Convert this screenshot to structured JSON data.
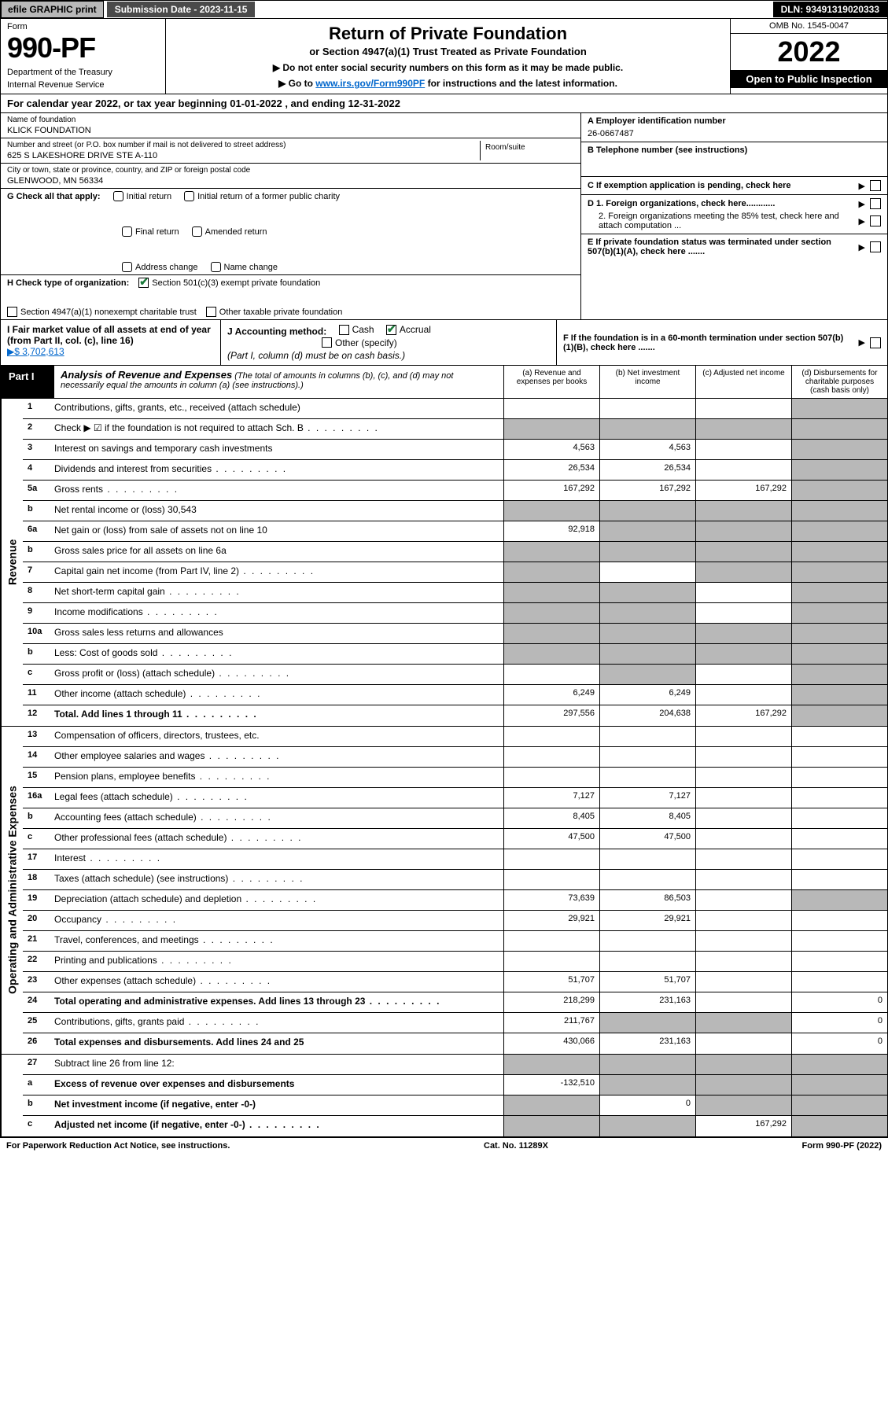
{
  "topbar": {
    "efile": "efile GRAPHIC print",
    "submission": "Submission Date - 2023-11-15",
    "dln": "DLN: 93491319020333"
  },
  "header": {
    "form_word": "Form",
    "form_num": "990-PF",
    "dept": "Department of the Treasury",
    "irs": "Internal Revenue Service",
    "title": "Return of Private Foundation",
    "subtitle": "or Section 4947(a)(1) Trust Treated as Private Foundation",
    "note1": "▶ Do not enter social security numbers on this form as it may be made public.",
    "note2_pre": "▶ Go to ",
    "note2_link": "www.irs.gov/Form990PF",
    "note2_post": " for instructions and the latest information.",
    "omb": "OMB No. 1545-0047",
    "year": "2022",
    "open": "Open to Public Inspection"
  },
  "calyear": "For calendar year 2022, or tax year beginning 01-01-2022              , and ending 12-31-2022",
  "entity": {
    "name_lbl": "Name of foundation",
    "name": "KLICK FOUNDATION",
    "addr_lbl": "Number and street (or P.O. box number if mail is not delivered to street address)",
    "addr": "625 S LAKESHORE DRIVE STE A-110",
    "room_lbl": "Room/suite",
    "city_lbl": "City or town, state or province, country, and ZIP or foreign postal code",
    "city": "GLENWOOD, MN  56334",
    "ein_lbl": "A Employer identification number",
    "ein": "26-0667487",
    "tel_lbl": "B Telephone number (see instructions)",
    "c_lbl": "C If exemption application is pending, check here",
    "d1": "D 1. Foreign organizations, check here............",
    "d2": "2. Foreign organizations meeting the 85% test, check here and attach computation ...",
    "e": "E  If private foundation status was terminated under section 507(b)(1)(A), check here .......",
    "f": "F  If the foundation is in a 60-month termination under section 507(b)(1)(B), check here .......",
    "g_lbl": "G Check all that apply:",
    "g_opts": [
      "Initial return",
      "Initial return of a former public charity",
      "Final return",
      "Amended return",
      "Address change",
      "Name change"
    ],
    "h_lbl": "H Check type of organization:",
    "h1": "Section 501(c)(3) exempt private foundation",
    "h2": "Section 4947(a)(1) nonexempt charitable trust",
    "h3": "Other taxable private foundation",
    "i_lbl": "I Fair market value of all assets at end of year (from Part II, col. (c), line 16)",
    "i_val": "▶$  3,702,613",
    "j_lbl": "J Accounting method:",
    "j_cash": "Cash",
    "j_accrual": "Accrual",
    "j_other": "Other (specify)",
    "j_note": "(Part I, column (d) must be on cash basis.)"
  },
  "part1": {
    "tag": "Part I",
    "title": "Analysis of Revenue and Expenses",
    "note": " (The total of amounts in columns (b), (c), and (d) may not necessarily equal the amounts in column (a) (see instructions).)",
    "cols": [
      "(a)   Revenue and expenses per books",
      "(b)   Net investment income",
      "(c)   Adjusted net income",
      "(d)   Disbursements for charitable purposes (cash basis only)"
    ]
  },
  "rows_revenue": [
    {
      "n": "1",
      "t": "Contributions, gifts, grants, etc., received (attach schedule)",
      "a": "",
      "b": "",
      "c": "",
      "d": "",
      "dgray": true
    },
    {
      "n": "2",
      "t": "Check ▶ ☑ if the foundation is not required to attach Sch. B",
      "a": "",
      "b": "",
      "c": "",
      "d": "",
      "dgray": true,
      "allgray": true,
      "dots": true
    },
    {
      "n": "3",
      "t": "Interest on savings and temporary cash investments",
      "a": "4,563",
      "b": "4,563",
      "c": "",
      "d": "",
      "dgray": true
    },
    {
      "n": "4",
      "t": "Dividends and interest from securities",
      "a": "26,534",
      "b": "26,534",
      "c": "",
      "d": "",
      "dgray": true,
      "dots": true
    },
    {
      "n": "5a",
      "t": "Gross rents",
      "a": "167,292",
      "b": "167,292",
      "c": "167,292",
      "d": "",
      "dgray": true,
      "dots": true
    },
    {
      "n": "b",
      "t": "Net rental income or (loss)                                30,543",
      "a": "",
      "b": "",
      "c": "",
      "d": "",
      "allgray": true
    },
    {
      "n": "6a",
      "t": "Net gain or (loss) from sale of assets not on line 10",
      "a": "92,918",
      "b": "",
      "c": "",
      "d": "",
      "bgray": true,
      "cgray": true,
      "dgray": true
    },
    {
      "n": "b",
      "t": "Gross sales price for all assets on line 6a",
      "a": "",
      "b": "",
      "c": "",
      "d": "",
      "allgray": true
    },
    {
      "n": "7",
      "t": "Capital gain net income (from Part IV, line 2)",
      "a": "",
      "b": "",
      "c": "",
      "d": "",
      "agray": true,
      "cgray": true,
      "dgray": true,
      "dots": true
    },
    {
      "n": "8",
      "t": "Net short-term capital gain",
      "a": "",
      "b": "",
      "c": "",
      "d": "",
      "agray": true,
      "bgray": true,
      "dgray": true,
      "dots": true
    },
    {
      "n": "9",
      "t": "Income modifications",
      "a": "",
      "b": "",
      "c": "",
      "d": "",
      "agray": true,
      "bgray": true,
      "dgray": true,
      "dots": true
    },
    {
      "n": "10a",
      "t": "Gross sales less returns and allowances",
      "a": "",
      "b": "",
      "c": "",
      "d": "",
      "allgray": true
    },
    {
      "n": "b",
      "t": "Less: Cost of goods sold",
      "a": "",
      "b": "",
      "c": "",
      "d": "",
      "allgray": true,
      "dots": true
    },
    {
      "n": "c",
      "t": "Gross profit or (loss) (attach schedule)",
      "a": "",
      "b": "",
      "c": "",
      "d": "",
      "bgray": true,
      "dgray": true,
      "dots": true
    },
    {
      "n": "11",
      "t": "Other income (attach schedule)",
      "a": "6,249",
      "b": "6,249",
      "c": "",
      "d": "",
      "dgray": true,
      "dots": true
    },
    {
      "n": "12",
      "t": "Total. Add lines 1 through 11",
      "a": "297,556",
      "b": "204,638",
      "c": "167,292",
      "d": "",
      "dgray": true,
      "bold": true,
      "dots": true
    }
  ],
  "rows_exp": [
    {
      "n": "13",
      "t": "Compensation of officers, directors, trustees, etc.",
      "a": "",
      "b": "",
      "c": "",
      "d": ""
    },
    {
      "n": "14",
      "t": "Other employee salaries and wages",
      "a": "",
      "b": "",
      "c": "",
      "d": "",
      "dots": true
    },
    {
      "n": "15",
      "t": "Pension plans, employee benefits",
      "a": "",
      "b": "",
      "c": "",
      "d": "",
      "dots": true
    },
    {
      "n": "16a",
      "t": "Legal fees (attach schedule)",
      "a": "7,127",
      "b": "7,127",
      "c": "",
      "d": "",
      "dots": true
    },
    {
      "n": "b",
      "t": "Accounting fees (attach schedule)",
      "a": "8,405",
      "b": "8,405",
      "c": "",
      "d": "",
      "dots": true
    },
    {
      "n": "c",
      "t": "Other professional fees (attach schedule)",
      "a": "47,500",
      "b": "47,500",
      "c": "",
      "d": "",
      "dots": true
    },
    {
      "n": "17",
      "t": "Interest",
      "a": "",
      "b": "",
      "c": "",
      "d": "",
      "dots": true
    },
    {
      "n": "18",
      "t": "Taxes (attach schedule) (see instructions)",
      "a": "",
      "b": "",
      "c": "",
      "d": "",
      "dots": true
    },
    {
      "n": "19",
      "t": "Depreciation (attach schedule) and depletion",
      "a": "73,639",
      "b": "86,503",
      "c": "",
      "d": "",
      "dgray": true,
      "dots": true
    },
    {
      "n": "20",
      "t": "Occupancy",
      "a": "29,921",
      "b": "29,921",
      "c": "",
      "d": "",
      "dots": true
    },
    {
      "n": "21",
      "t": "Travel, conferences, and meetings",
      "a": "",
      "b": "",
      "c": "",
      "d": "",
      "dots": true
    },
    {
      "n": "22",
      "t": "Printing and publications",
      "a": "",
      "b": "",
      "c": "",
      "d": "",
      "dots": true
    },
    {
      "n": "23",
      "t": "Other expenses (attach schedule)",
      "a": "51,707",
      "b": "51,707",
      "c": "",
      "d": "",
      "dots": true
    },
    {
      "n": "24",
      "t": "Total operating and administrative expenses. Add lines 13 through 23",
      "a": "218,299",
      "b": "231,163",
      "c": "",
      "d": "0",
      "bold": true,
      "dots": true
    },
    {
      "n": "25",
      "t": "Contributions, gifts, grants paid",
      "a": "211,767",
      "b": "",
      "c": "",
      "d": "0",
      "bgray": true,
      "cgray": true,
      "dots": true
    },
    {
      "n": "26",
      "t": "Total expenses and disbursements. Add lines 24 and 25",
      "a": "430,066",
      "b": "231,163",
      "c": "",
      "d": "0",
      "bold": true
    }
  ],
  "rows_final": [
    {
      "n": "27",
      "t": "Subtract line 26 from line 12:",
      "a": "",
      "b": "",
      "c": "",
      "d": "",
      "allgray": true
    },
    {
      "n": "a",
      "t": "Excess of revenue over expenses and disbursements",
      "a": "-132,510",
      "b": "",
      "c": "",
      "d": "",
      "bgray": true,
      "cgray": true,
      "dgray": true,
      "bold": true
    },
    {
      "n": "b",
      "t": "Net investment income (if negative, enter -0-)",
      "a": "",
      "b": "0",
      "c": "",
      "d": "",
      "agray": true,
      "cgray": true,
      "dgray": true,
      "bold": true
    },
    {
      "n": "c",
      "t": "Adjusted net income (if negative, enter -0-)",
      "a": "",
      "b": "",
      "c": "167,292",
      "d": "",
      "agray": true,
      "bgray": true,
      "dgray": true,
      "bold": true,
      "dots": true
    }
  ],
  "footer": {
    "left": "For Paperwork Reduction Act Notice, see instructions.",
    "mid": "Cat. No. 11289X",
    "right": "Form 990-PF (2022)"
  }
}
